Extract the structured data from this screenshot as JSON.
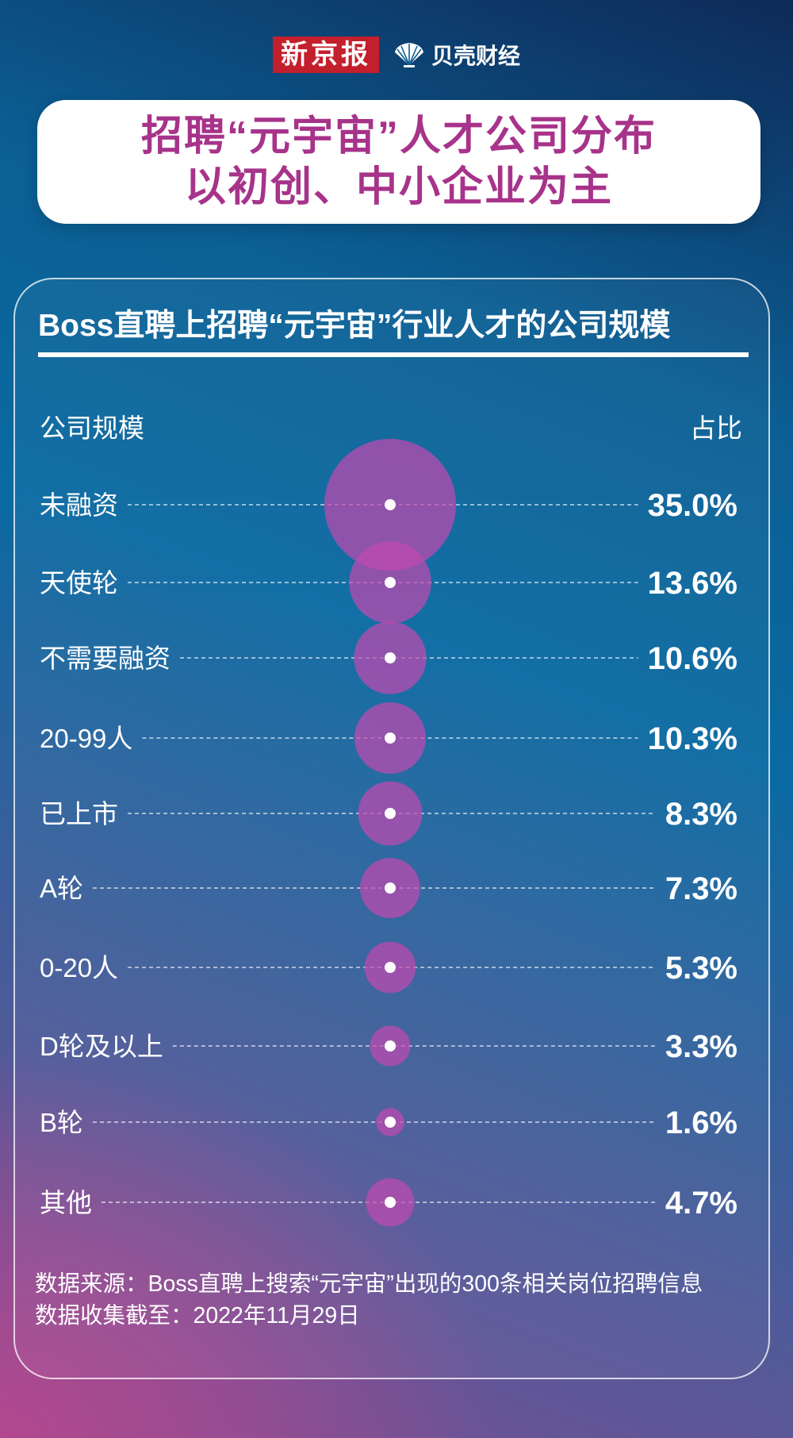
{
  "brand": {
    "paper": "新京报",
    "sub": "贝壳财经",
    "logo_icon": "shell-icon"
  },
  "headline": {
    "line1": "招聘“元宇宙”人才公司分布",
    "line2": "以初创、中小企业为主"
  },
  "chart_data": {
    "type": "bubble",
    "title": "Boss直聘上招聘“元宇宙”行业人才的公司规模",
    "column_left": "公司规模",
    "column_right": "占比",
    "unit": "%",
    "categories": [
      "未融资",
      "天使轮",
      "不需要融资",
      "20-99人",
      "已上市",
      "A轮",
      "0-20人",
      "D轮及以上",
      "B轮",
      "其他"
    ],
    "values": [
      35.0,
      13.6,
      10.6,
      10.3,
      8.3,
      7.3,
      5.3,
      3.3,
      1.6,
      4.7
    ],
    "value_labels": [
      "35.0%",
      "13.6%",
      "10.6%",
      "10.3%",
      "8.3%",
      "7.3%",
      "5.3%",
      "3.3%",
      "1.6%",
      "4.7%"
    ],
    "bubble_color": "#c04ab0"
  },
  "footer": {
    "source": "数据来源：Boss直聘上搜索“元宇宙”出现的300条相关岗位招聘信息",
    "date": "数据收集截至：2022年11月29日"
  }
}
